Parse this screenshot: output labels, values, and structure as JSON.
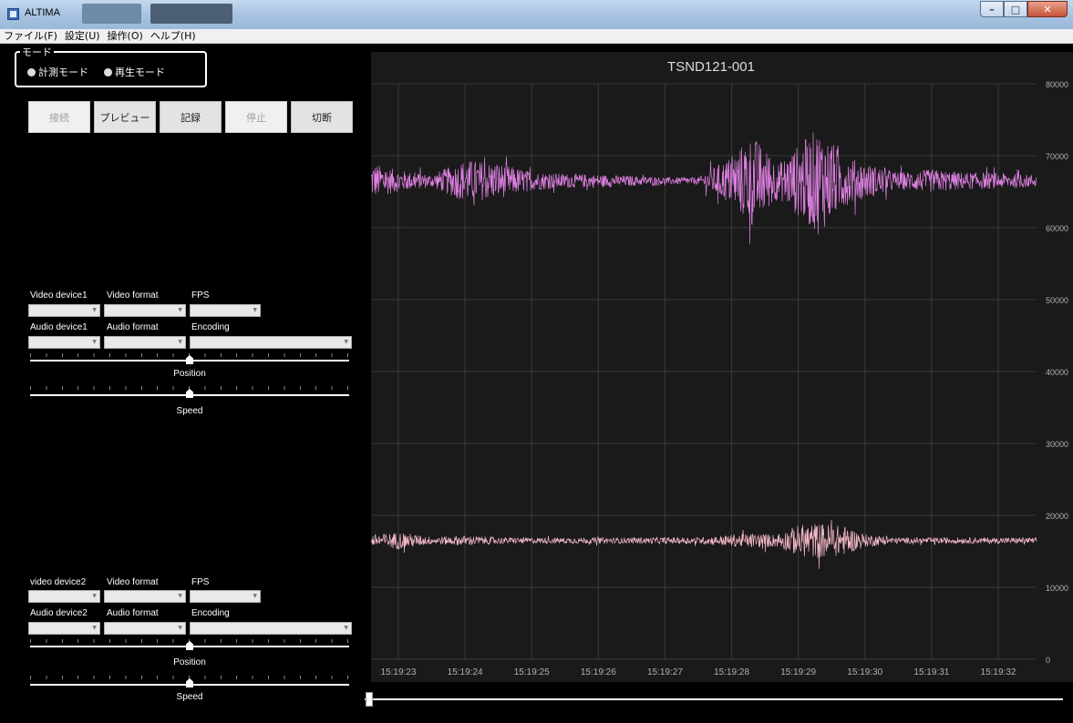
{
  "window": {
    "title": "ALTIMA"
  },
  "menu": [
    {
      "label": "ファイル(F)"
    },
    {
      "label": "設定(U)"
    },
    {
      "label": "操作(O)"
    },
    {
      "label": "ヘルプ(H)"
    }
  ],
  "mode": {
    "legend": "モード",
    "options": [
      "計測モード",
      "再生モード"
    ]
  },
  "buttons": [
    {
      "label": "接続",
      "enabled": false
    },
    {
      "label": "プレビュー",
      "enabled": true
    },
    {
      "label": "記録",
      "enabled": true
    },
    {
      "label": "停止",
      "enabled": false
    },
    {
      "label": "切断",
      "enabled": true
    }
  ],
  "media1": {
    "video_device": "Video device1",
    "video_format": "Video format",
    "fps": "FPS",
    "audio_device": "Audio device1",
    "audio_format": "Audio format",
    "encoding": "Encoding",
    "position": "Position",
    "speed": "Speed"
  },
  "media2": {
    "video_device": "video device2",
    "video_format": "Video format",
    "fps": "FPS",
    "audio_device": "Audio device2",
    "audio_format": "Audio format",
    "encoding": "Encoding",
    "position": "Position",
    "speed": "Speed"
  },
  "chart_data": {
    "type": "line",
    "title": "TSND121-001",
    "xlabel": "",
    "ylabel": "",
    "ylim": [
      0,
      80000
    ],
    "yticks": [
      "80000",
      "70000",
      "60000",
      "50000",
      "40000",
      "30000",
      "20000",
      "10000",
      "0"
    ],
    "xticks": [
      "15:19:23",
      "15:19:24",
      "15:19:25",
      "15:19:26",
      "15:19:27",
      "15:19:28",
      "15:19:29",
      "15:19:30",
      "15:19:31",
      "15:19:32"
    ],
    "grid": true,
    "background": "#1a1a1a",
    "series": [
      {
        "color": "#dd7fe0",
        "baseline": 66500,
        "envelope_time": [
          "15:19:22.6",
          "15:19:23",
          "15:19:23.5",
          "15:19:24",
          "15:19:24.5",
          "15:19:25",
          "15:19:25.5",
          "15:19:26",
          "15:19:26.5",
          "15:19:27",
          "15:19:27.5",
          "15:19:28",
          "15:19:28.3",
          "15:19:28.7",
          "15:19:29",
          "15:19:29.3",
          "15:19:29.7",
          "15:19:30",
          "15:19:30.5",
          "15:19:31",
          "15:19:31.5",
          "15:19:32",
          "15:19:32.5"
        ],
        "envelope_half_range": [
          2500,
          1500,
          900,
          3000,
          2500,
          1300,
          1000,
          900,
          700,
          500,
          500,
          3500,
          6500,
          2500,
          5000,
          7500,
          3500,
          2500,
          1200,
          1600,
          1200,
          1100,
          900
        ]
      },
      {
        "color": "#f5b8c8",
        "baseline": 16500,
        "envelope_time": [
          "15:19:22.6",
          "15:19:23",
          "15:19:23.5",
          "15:19:24",
          "15:19:24.5",
          "15:19:25",
          "15:19:25.5",
          "15:19:26",
          "15:19:26.5",
          "15:19:27",
          "15:19:27.5",
          "15:19:28",
          "15:19:28.3",
          "15:19:28.7",
          "15:19:29",
          "15:19:29.3",
          "15:19:29.7",
          "15:19:30",
          "15:19:30.5",
          "15:19:31",
          "15:19:31.5",
          "15:19:32",
          "15:19:32.5"
        ],
        "envelope_half_range": [
          800,
          1200,
          500,
          700,
          450,
          400,
          400,
          400,
          400,
          450,
          450,
          800,
          1000,
          900,
          2200,
          2500,
          2000,
          900,
          400,
          400,
          400,
          400,
          400
        ]
      }
    ]
  }
}
